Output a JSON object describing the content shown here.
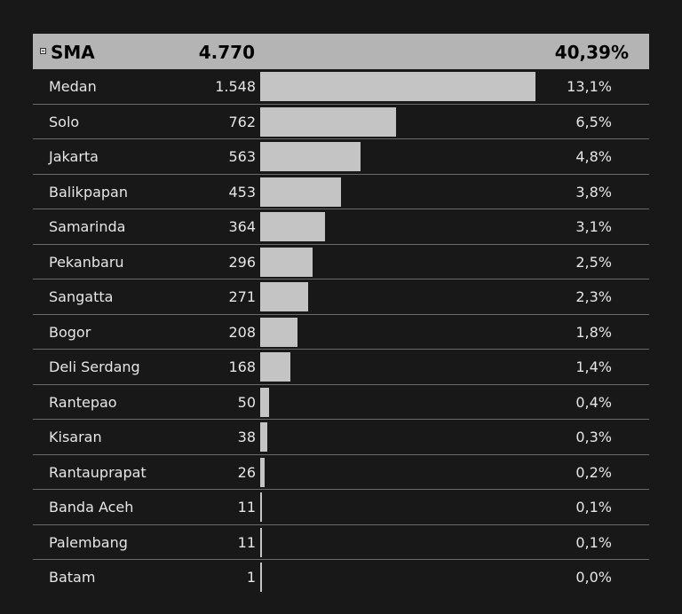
{
  "chart_data": {
    "type": "bar",
    "group": {
      "label": "SMA",
      "value": "4.770",
      "percent": "40,39%"
    },
    "max_value": 1548,
    "rows": [
      {
        "category": "Medan",
        "value": 1548,
        "value_label": "1.548",
        "percent": "13,1%"
      },
      {
        "category": "Solo",
        "value": 762,
        "value_label": "762",
        "percent": "6,5%"
      },
      {
        "category": "Jakarta",
        "value": 563,
        "value_label": "563",
        "percent": "4,8%"
      },
      {
        "category": "Balikpapan",
        "value": 453,
        "value_label": "453",
        "percent": "3,8%"
      },
      {
        "category": "Samarinda",
        "value": 364,
        "value_label": "364",
        "percent": "3,1%"
      },
      {
        "category": "Pekanbaru",
        "value": 296,
        "value_label": "296",
        "percent": "2,5%"
      },
      {
        "category": "Sangatta",
        "value": 271,
        "value_label": "271",
        "percent": "2,3%"
      },
      {
        "category": "Bogor",
        "value": 208,
        "value_label": "208",
        "percent": "1,8%"
      },
      {
        "category": "Deli Serdang",
        "value": 168,
        "value_label": "168",
        "percent": "1,4%"
      },
      {
        "category": "Rantepao",
        "value": 50,
        "value_label": "50",
        "percent": "0,4%"
      },
      {
        "category": "Kisaran",
        "value": 38,
        "value_label": "38",
        "percent": "0,3%"
      },
      {
        "category": "Rantauprapat",
        "value": 26,
        "value_label": "26",
        "percent": "0,2%"
      },
      {
        "category": "Banda Aceh",
        "value": 11,
        "value_label": "11",
        "percent": "0,1%"
      },
      {
        "category": "Palembang",
        "value": 11,
        "value_label": "11",
        "percent": "0,1%"
      },
      {
        "category": "Batam",
        "value": 1,
        "value_label": "1",
        "percent": "0,0%"
      }
    ]
  }
}
